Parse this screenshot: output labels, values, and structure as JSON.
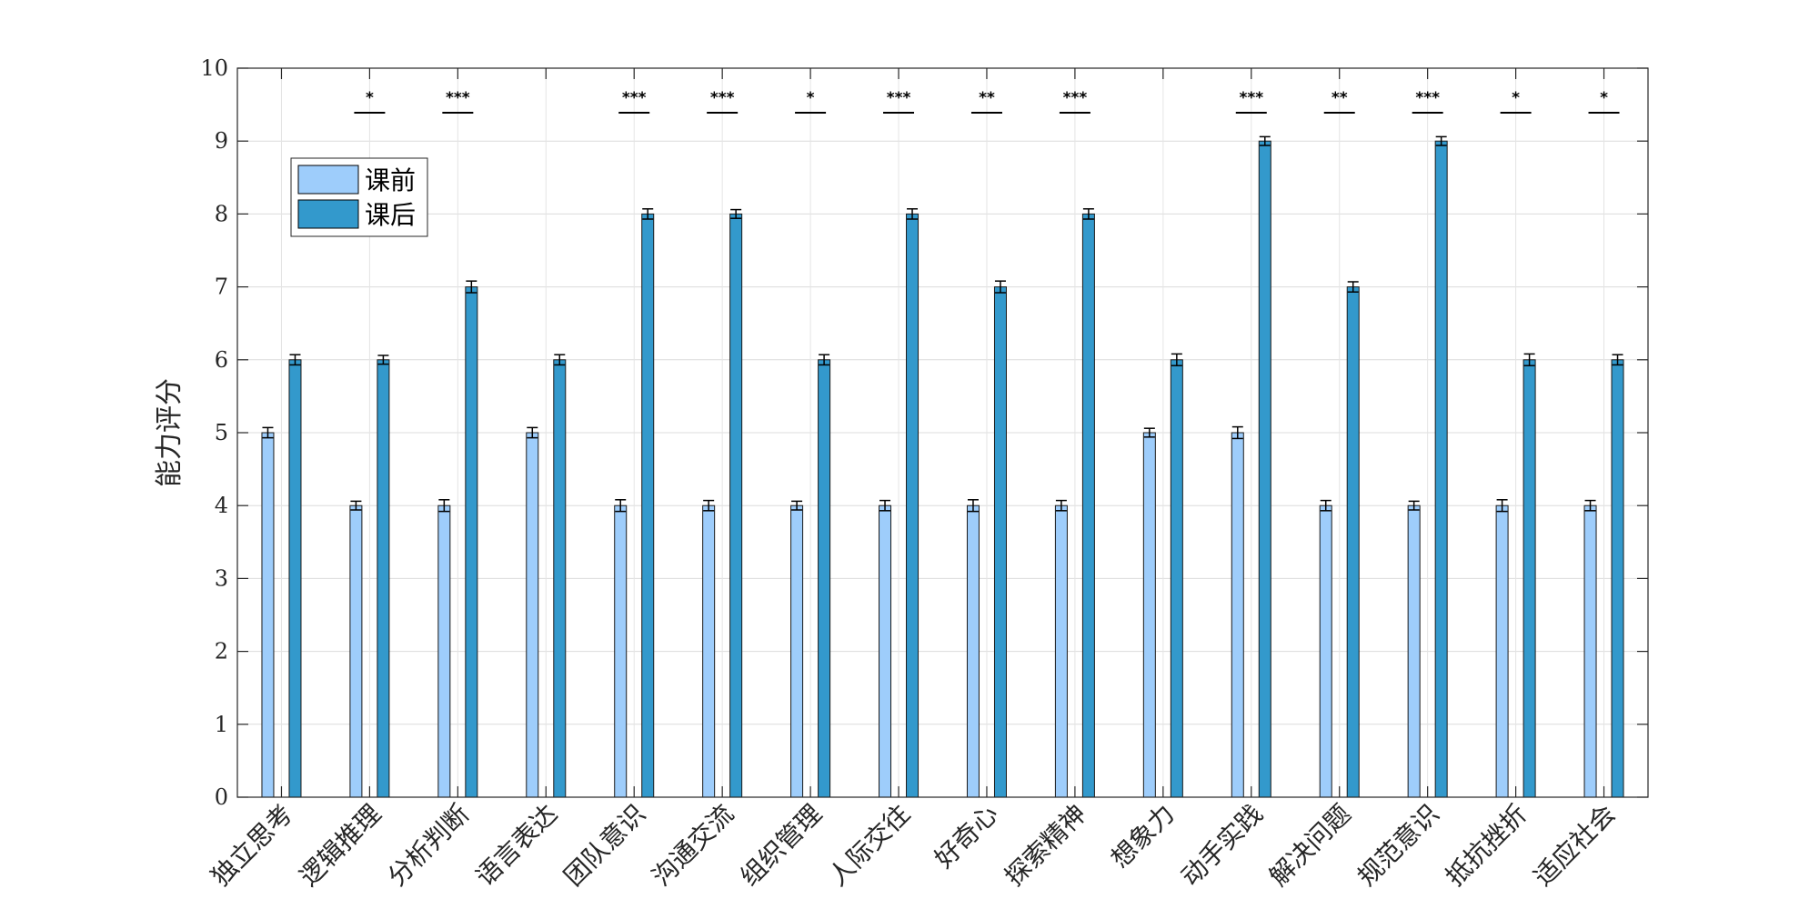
{
  "chart_data": {
    "type": "bar",
    "ylabel": "能力评分",
    "xlabel": "",
    "title": "",
    "ylim": [
      0,
      10
    ],
    "yticks": [
      0,
      1,
      2,
      3,
      4,
      5,
      6,
      7,
      8,
      9,
      10
    ],
    "grid": true,
    "legend_position": "top-left",
    "categories": [
      "独立思考",
      "逻辑推理",
      "分析判断",
      "语言表达",
      "团队意识",
      "沟通交流",
      "组织管理",
      "人际交往",
      "好奇心",
      "探索精神",
      "想象力",
      "动手实践",
      "解决问题",
      "规范意识",
      "抵抗挫折",
      "适应社会"
    ],
    "series": [
      {
        "name": "课前",
        "color": "#9ecdfb",
        "values": [
          5,
          4,
          4,
          5,
          4,
          4,
          4,
          4,
          4,
          4,
          5,
          5,
          4,
          4,
          4,
          4
        ],
        "errors": [
          0.07,
          0.06,
          0.08,
          0.07,
          0.08,
          0.07,
          0.06,
          0.07,
          0.08,
          0.07,
          0.06,
          0.08,
          0.07,
          0.06,
          0.08,
          0.07
        ]
      },
      {
        "name": "课后",
        "color": "#3399cc",
        "values": [
          6,
          6,
          7,
          6,
          8,
          8,
          6,
          8,
          7,
          8,
          6,
          9,
          7,
          9,
          6,
          6
        ],
        "errors": [
          0.07,
          0.06,
          0.08,
          0.07,
          0.07,
          0.06,
          0.07,
          0.07,
          0.08,
          0.07,
          0.08,
          0.06,
          0.07,
          0.06,
          0.08,
          0.07
        ]
      }
    ],
    "significance": [
      "",
      "*",
      "***",
      "",
      "***",
      "***",
      "*",
      "***",
      "**",
      "***",
      "",
      "***",
      "**",
      "***",
      "*",
      "*"
    ]
  }
}
